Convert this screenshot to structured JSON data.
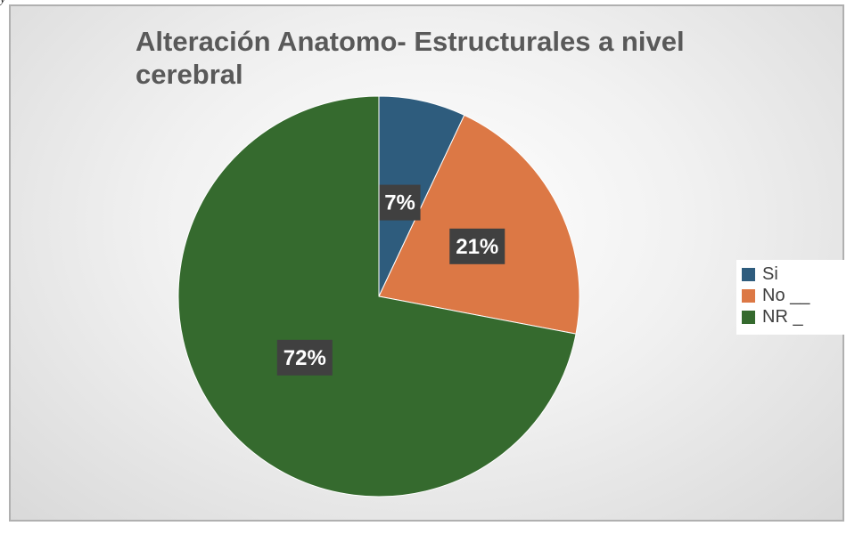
{
  "chart_data": {
    "type": "pie",
    "title": "Alteración Anatomo- Estructurales a nivel cerebral",
    "categories": [
      "Si",
      "No __",
      "NR _"
    ],
    "values": [
      7,
      21,
      72
    ],
    "data_labels": [
      "7%",
      "21%",
      "72%"
    ],
    "colors": [
      "#2e5c7d",
      "#dc7845",
      "#356a2e"
    ],
    "label_box_color": "#404040",
    "legend_position": "right",
    "start_angle": "12 o'clock",
    "direction": "clockwise"
  },
  "fragment_text": "y"
}
